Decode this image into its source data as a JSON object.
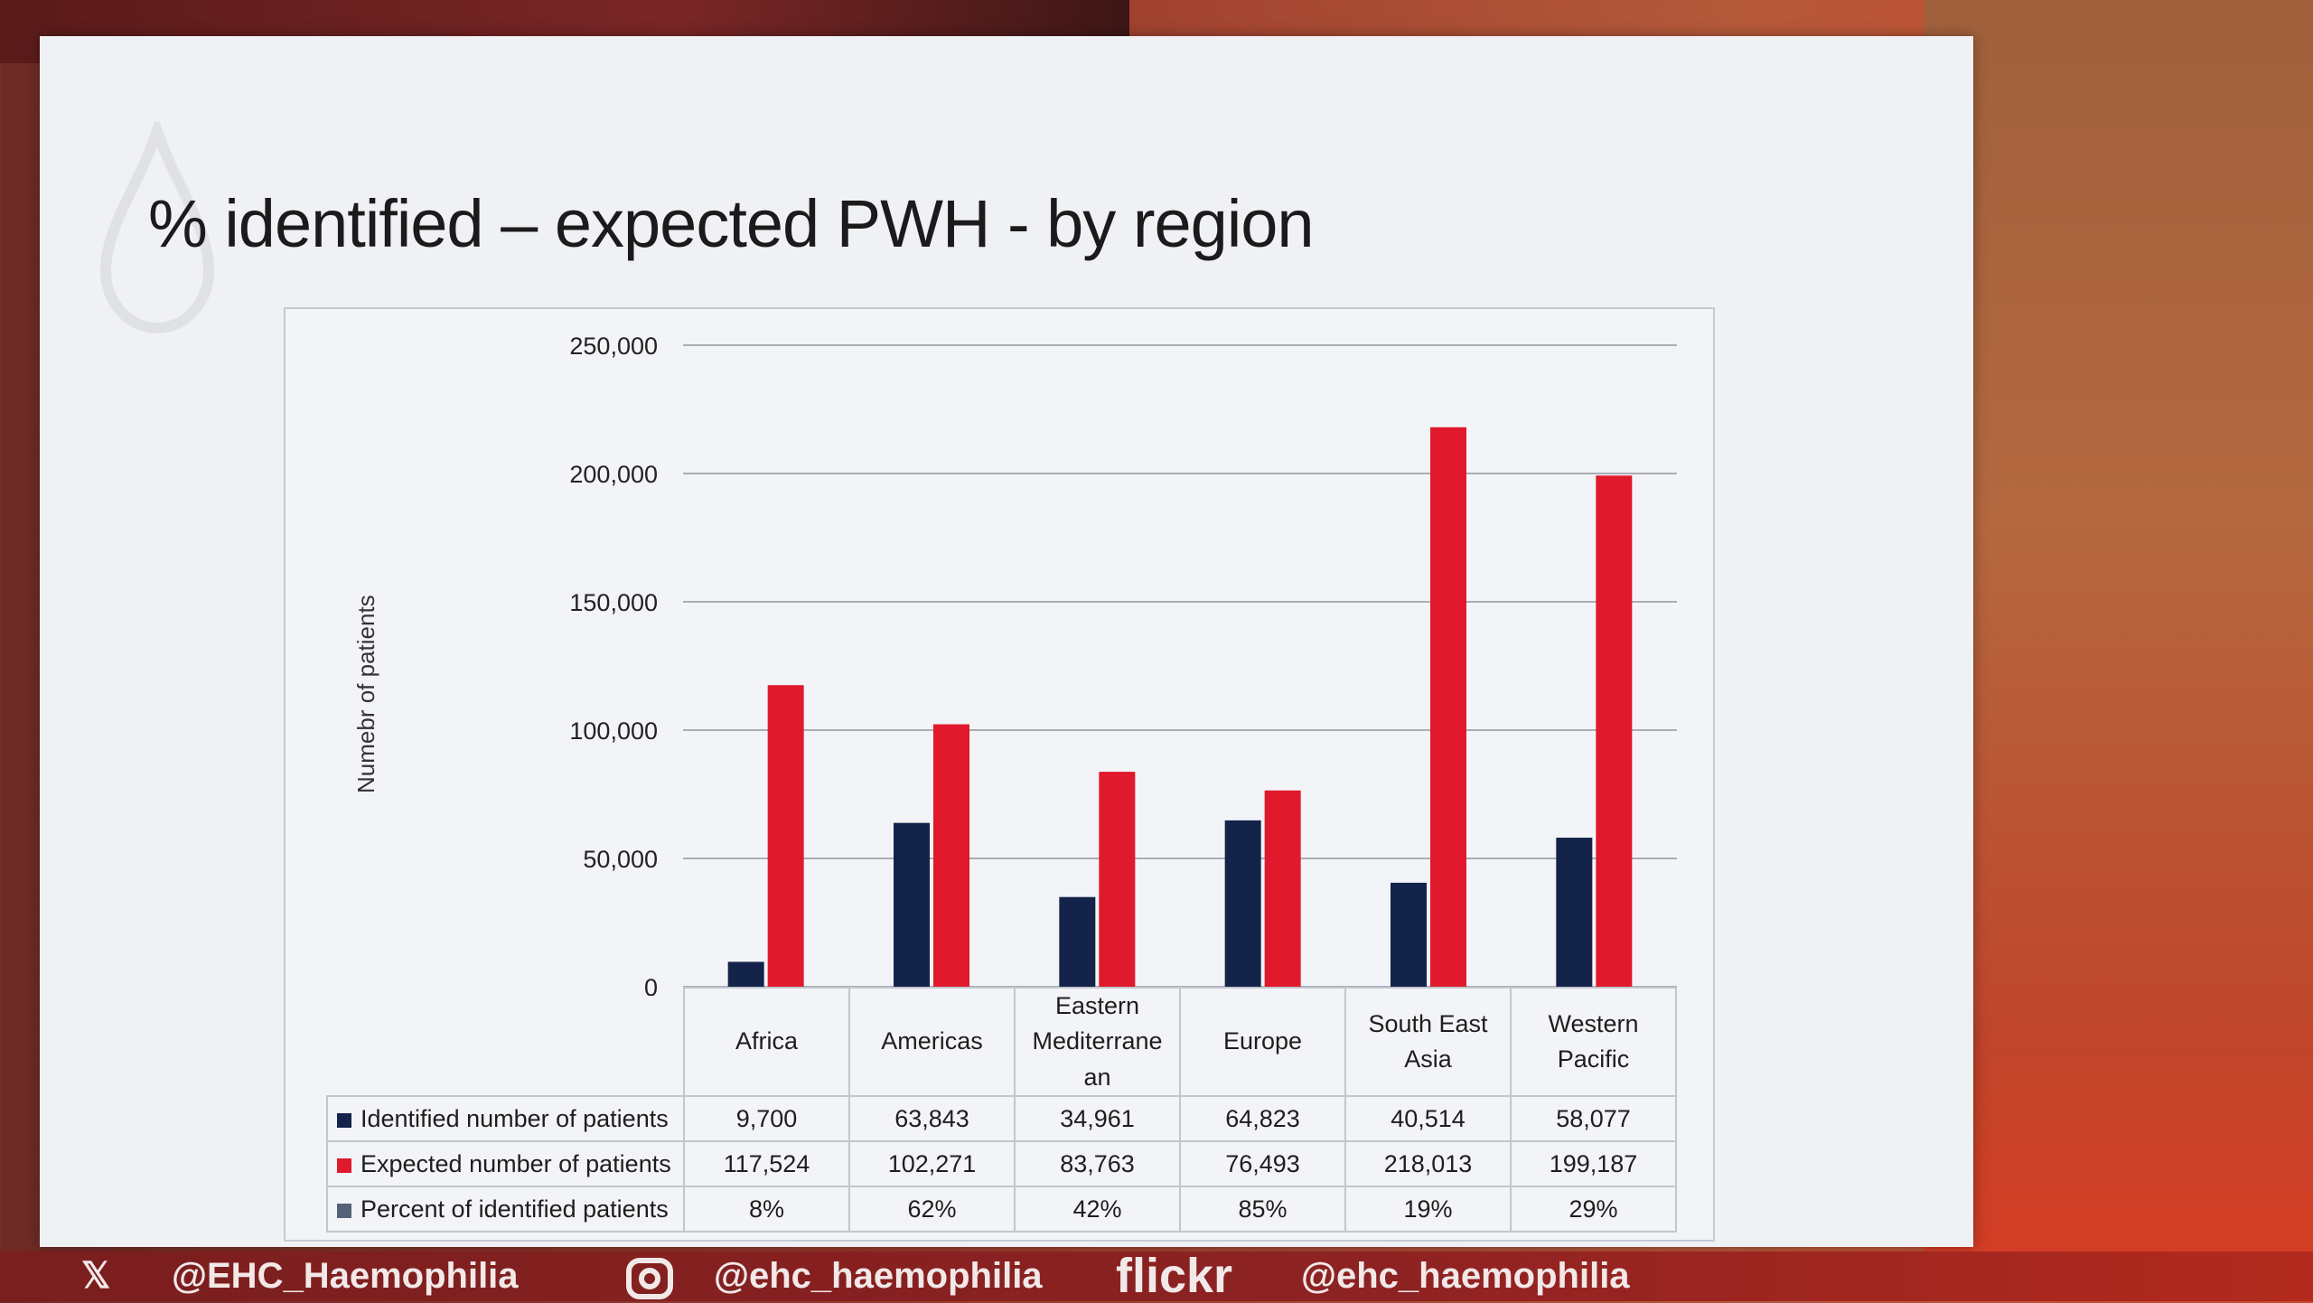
{
  "slide": {
    "title": "% identified – expected PWH - by region",
    "accent_color": "#c00000"
  },
  "chart_data": {
    "type": "bar",
    "title": "",
    "xlabel": "",
    "ylabel": "Numebr of patients",
    "ylim": [
      0,
      250000
    ],
    "yticks": [
      "250,000",
      "200,000",
      "150,000",
      "100,000",
      "50,000",
      "0"
    ],
    "ytick_values": [
      250000,
      200000,
      150000,
      100000,
      50000,
      0
    ],
    "grid": true,
    "categories": [
      "Africa",
      "Americas",
      "Eastern Mediterrane an",
      "Europe",
      "South East Asia",
      "Western Pacific"
    ],
    "series": [
      {
        "name": "Identified number of patients",
        "color": "#13234a",
        "values": [
          9700,
          63843,
          34961,
          64823,
          40514,
          58077
        ],
        "labels": [
          "9,700",
          "63,843",
          "34,961",
          "64,823",
          "40,514",
          "58,077"
        ]
      },
      {
        "name": "Expected number of patients",
        "color": "#e0192c",
        "values": [
          117524,
          102271,
          83763,
          76493,
          218013,
          199187
        ],
        "labels": [
          "117,524",
          "102,271",
          "83,763",
          "76,493",
          "218,013",
          "199,187"
        ]
      },
      {
        "name": "Percent of identified patients",
        "color": "#55627a",
        "values": [
          8,
          62,
          42,
          85,
          19,
          29
        ],
        "labels": [
          "8%",
          "62%",
          "42%",
          "85%",
          "19%",
          "29%"
        ]
      }
    ]
  },
  "footer": {
    "x_handle": "@EHC_Haemophilia",
    "instagram_handle": "@ehc_haemophilia",
    "flickr_label": "flickr",
    "flickr_handle": "@ehc_haemophilia",
    "x_icon": "x-logo-icon",
    "instagram_icon": "instagram-icon"
  }
}
